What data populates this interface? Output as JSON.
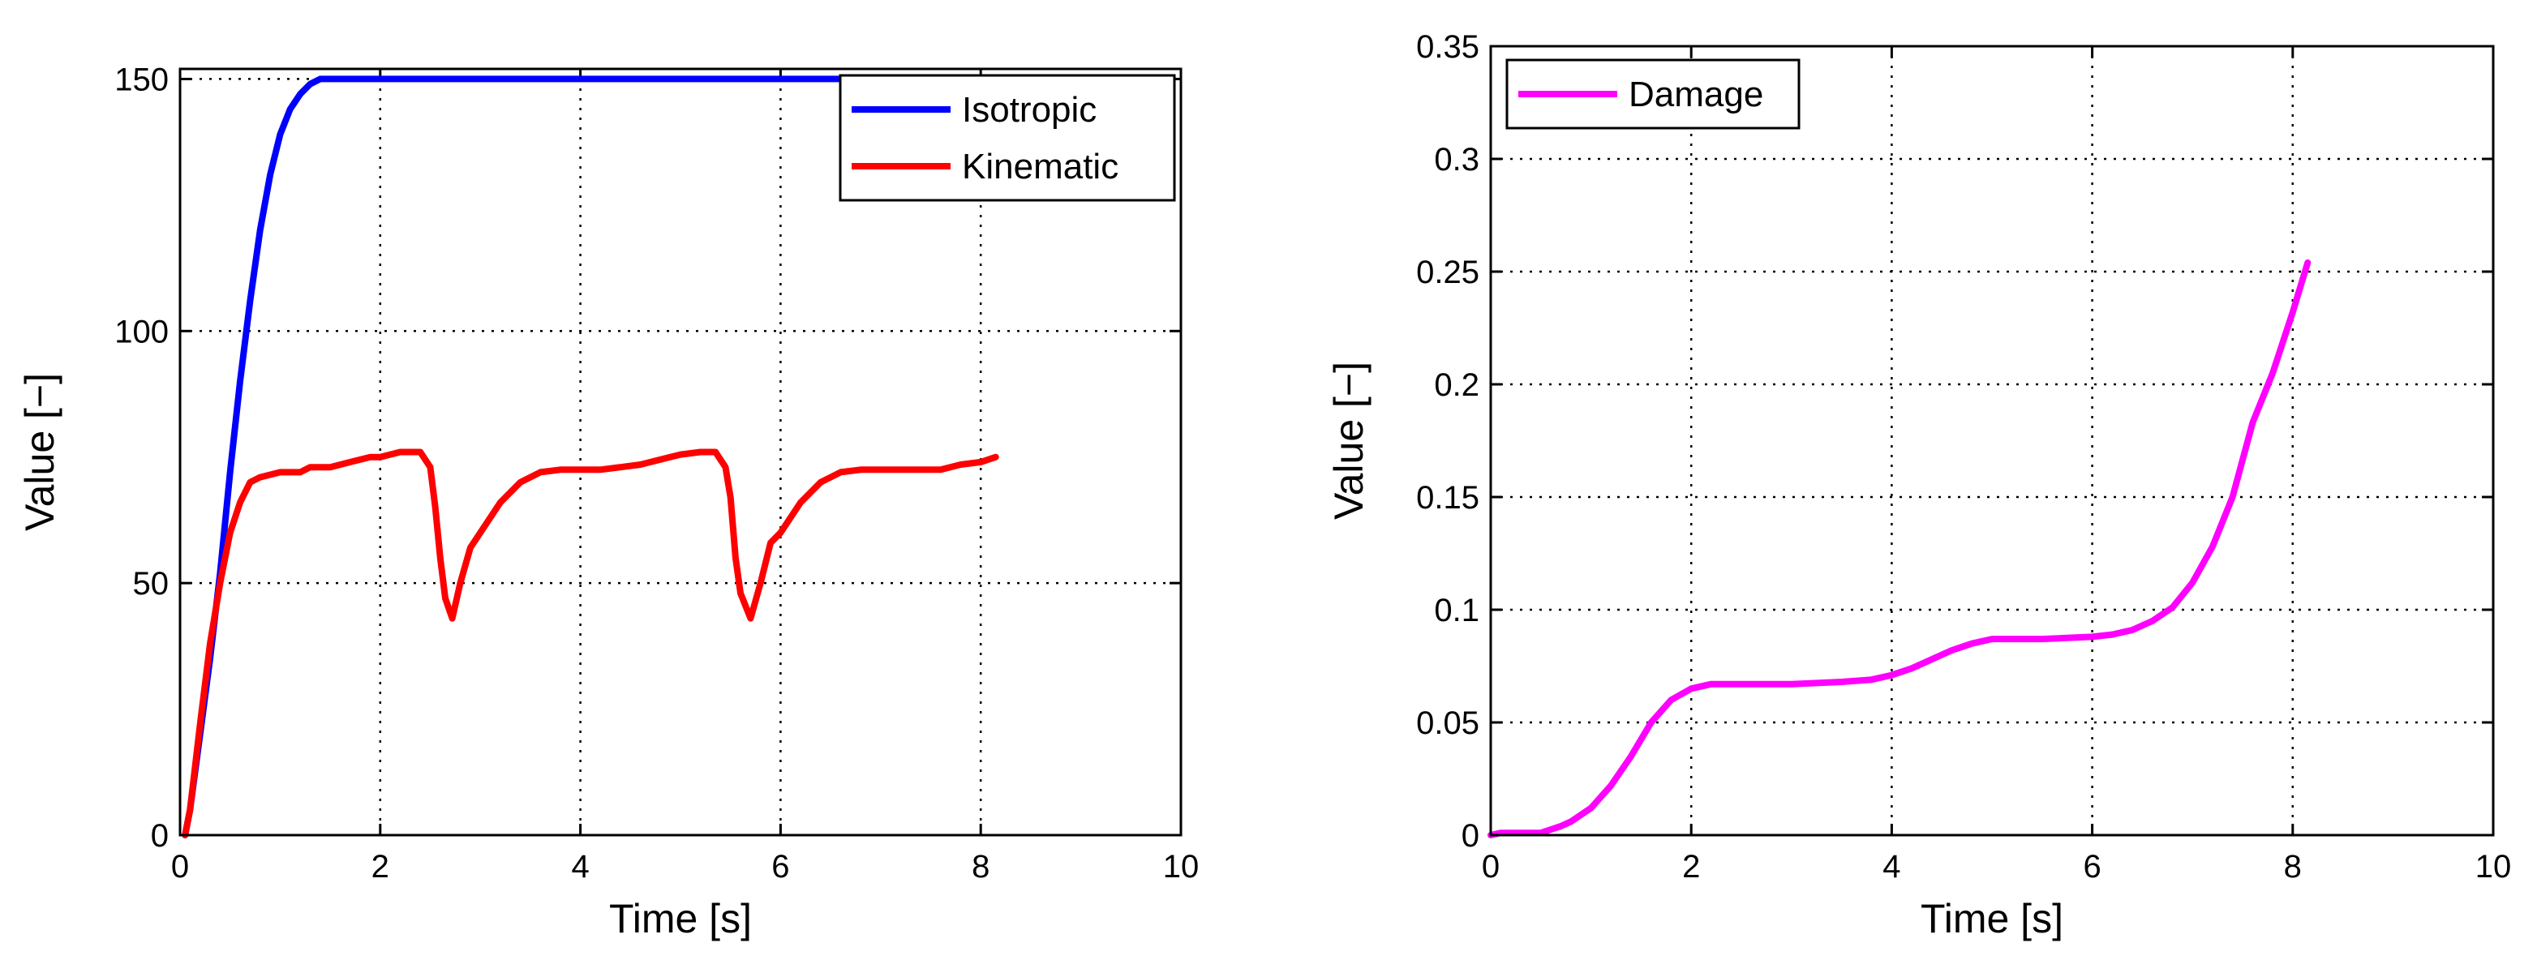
{
  "chart_data": [
    {
      "type": "line",
      "xlabel": "Time [s]",
      "ylabel": "Value [−]",
      "xlim": [
        0,
        10
      ],
      "ylim": [
        0,
        152
      ],
      "xticks": [
        0,
        2,
        4,
        6,
        8,
        10
      ],
      "yticks": [
        0,
        50,
        100,
        150
      ],
      "xtick_labels": [
        "0",
        "2",
        "4",
        "6",
        "8",
        "10"
      ],
      "ytick_labels": [
        "0",
        "50",
        "100",
        "150"
      ],
      "grid": true,
      "legend_position": "top-right",
      "series": [
        {
          "name": "Isotropic",
          "color": "#0000ff",
          "x": [
            0.05,
            0.1,
            0.2,
            0.3,
            0.4,
            0.5,
            0.6,
            0.7,
            0.8,
            0.9,
            1.0,
            1.1,
            1.2,
            1.3,
            1.4,
            1.5,
            2.0,
            4.0,
            6.0,
            8.15
          ],
          "y": [
            0,
            5,
            20,
            35,
            52,
            72,
            90,
            106,
            120,
            131,
            139,
            144,
            147,
            149,
            150,
            150,
            150,
            150,
            150,
            150
          ]
        },
        {
          "name": "Kinematic",
          "color": "#ff0000",
          "x": [
            0.05,
            0.1,
            0.2,
            0.3,
            0.4,
            0.5,
            0.6,
            0.7,
            0.8,
            0.9,
            1.0,
            1.2,
            1.3,
            1.5,
            1.7,
            1.9,
            2.0,
            2.2,
            2.4,
            2.5,
            2.55,
            2.6,
            2.65,
            2.72,
            2.8,
            2.9,
            3.0,
            3.2,
            3.4,
            3.6,
            3.8,
            4.0,
            4.2,
            4.4,
            4.6,
            4.8,
            5.0,
            5.2,
            5.35,
            5.45,
            5.5,
            5.55,
            5.6,
            5.7,
            5.8,
            5.9,
            6.0,
            6.2,
            6.4,
            6.6,
            6.8,
            7.0,
            7.2,
            7.4,
            7.6,
            7.8,
            8.0,
            8.15
          ],
          "y": [
            0,
            5,
            22,
            38,
            50,
            60,
            66,
            70,
            71,
            71.5,
            72,
            72,
            73,
            73,
            74,
            75,
            75,
            76,
            76,
            73,
            65,
            55,
            47,
            43,
            50,
            57,
            60,
            66,
            70,
            72,
            72.5,
            72.5,
            72.5,
            73,
            73.5,
            74.5,
            75.5,
            76,
            76,
            73,
            67,
            55,
            48,
            43,
            50,
            58,
            60,
            66,
            70,
            72,
            72.5,
            72.5,
            72.5,
            72.5,
            72.5,
            73.5,
            74,
            75
          ]
        }
      ]
    },
    {
      "type": "line",
      "xlabel": "Time [s]",
      "ylabel": "Value [−]",
      "xlim": [
        0,
        10
      ],
      "ylim": [
        0,
        0.35
      ],
      "xticks": [
        0,
        2,
        4,
        6,
        8,
        10
      ],
      "yticks": [
        0,
        0.05,
        0.1,
        0.15,
        0.2,
        0.25,
        0.3,
        0.35
      ],
      "xtick_labels": [
        "0",
        "2",
        "4",
        "6",
        "8",
        "10"
      ],
      "ytick_labels": [
        "0",
        "0.05",
        "0.1",
        "0.15",
        "0.2",
        "0.25",
        "0.3",
        "0.35"
      ],
      "grid": true,
      "legend_position": "top-left",
      "series": [
        {
          "name": "Damage",
          "color": "#ff00ff",
          "x": [
            0.0,
            0.1,
            0.2,
            0.3,
            0.5,
            0.7,
            0.8,
            1.0,
            1.2,
            1.4,
            1.6,
            1.8,
            2.0,
            2.2,
            2.5,
            3.0,
            3.5,
            3.8,
            4.0,
            4.2,
            4.4,
            4.6,
            4.8,
            5.0,
            5.5,
            6.0,
            6.2,
            6.4,
            6.6,
            6.8,
            7.0,
            7.2,
            7.4,
            7.6,
            7.8,
            8.0,
            8.15
          ],
          "y": [
            0.0,
            0.001,
            0.001,
            0.001,
            0.001,
            0.004,
            0.006,
            0.012,
            0.022,
            0.035,
            0.05,
            0.06,
            0.065,
            0.067,
            0.067,
            0.067,
            0.068,
            0.069,
            0.071,
            0.074,
            0.078,
            0.082,
            0.085,
            0.087,
            0.087,
            0.088,
            0.089,
            0.091,
            0.095,
            0.101,
            0.112,
            0.128,
            0.15,
            0.183,
            0.205,
            0.232,
            0.254
          ]
        }
      ]
    }
  ]
}
